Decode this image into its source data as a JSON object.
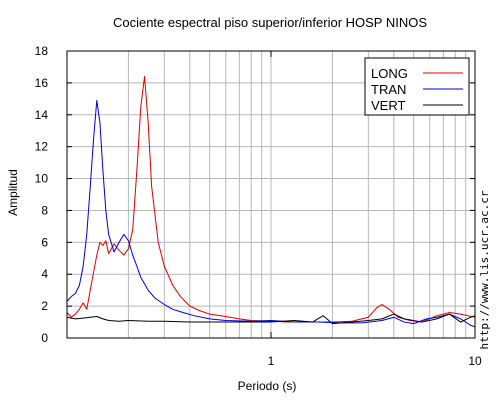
{
  "chart_data": {
    "type": "line",
    "title": "Cociente espectral piso superior/inferior  HOSP NINOS",
    "xlabel": "Periodo (s)",
    "ylabel": "Amplitud",
    "x_scale": "log",
    "xlim": [
      0.1,
      10
    ],
    "ylim": [
      0,
      18
    ],
    "x_ticks": [
      1,
      10
    ],
    "y_ticks": [
      0,
      2,
      4,
      6,
      8,
      10,
      12,
      14,
      16,
      18
    ],
    "grid": true,
    "legend_position": "top-right",
    "side_text": "http://www.lis.ucr.ac.cr",
    "series": [
      {
        "name": "LONG",
        "color": "#dd0000",
        "points": [
          [
            0.1,
            1.6
          ],
          [
            0.105,
            1.3
          ],
          [
            0.11,
            1.5
          ],
          [
            0.115,
            1.8
          ],
          [
            0.12,
            2.2
          ],
          [
            0.125,
            1.8
          ],
          [
            0.13,
            3.0
          ],
          [
            0.14,
            5.2
          ],
          [
            0.145,
            6.0
          ],
          [
            0.15,
            5.8
          ],
          [
            0.155,
            6.1
          ],
          [
            0.16,
            5.3
          ],
          [
            0.17,
            5.9
          ],
          [
            0.18,
            5.5
          ],
          [
            0.19,
            5.2
          ],
          [
            0.2,
            5.6
          ],
          [
            0.21,
            6.8
          ],
          [
            0.22,
            10.5
          ],
          [
            0.23,
            14.5
          ],
          [
            0.24,
            16.4
          ],
          [
            0.25,
            13.5
          ],
          [
            0.26,
            9.5
          ],
          [
            0.28,
            6.0
          ],
          [
            0.3,
            4.5
          ],
          [
            0.33,
            3.3
          ],
          [
            0.36,
            2.6
          ],
          [
            0.4,
            2.0
          ],
          [
            0.45,
            1.7
          ],
          [
            0.5,
            1.5
          ],
          [
            0.6,
            1.35
          ],
          [
            0.7,
            1.2
          ],
          [
            0.8,
            1.1
          ],
          [
            1.0,
            1.05
          ],
          [
            1.2,
            1.0
          ],
          [
            1.5,
            1.0
          ],
          [
            2.0,
            1.0
          ],
          [
            2.5,
            1.05
          ],
          [
            3.0,
            1.3
          ],
          [
            3.3,
            1.9
          ],
          [
            3.5,
            2.1
          ],
          [
            3.8,
            1.8
          ],
          [
            4.2,
            1.3
          ],
          [
            4.8,
            1.1
          ],
          [
            5.5,
            1.0
          ],
          [
            6.5,
            1.4
          ],
          [
            7.5,
            1.6
          ],
          [
            8.5,
            1.5
          ],
          [
            9.2,
            1.4
          ],
          [
            10,
            1.3
          ]
        ]
      },
      {
        "name": "TRAN",
        "color": "#0000cc",
        "points": [
          [
            0.1,
            2.3
          ],
          [
            0.105,
            2.6
          ],
          [
            0.11,
            2.8
          ],
          [
            0.115,
            3.3
          ],
          [
            0.12,
            4.5
          ],
          [
            0.125,
            6.5
          ],
          [
            0.13,
            9.5
          ],
          [
            0.135,
            12.5
          ],
          [
            0.14,
            14.9
          ],
          [
            0.145,
            13.5
          ],
          [
            0.15,
            10.5
          ],
          [
            0.155,
            8.0
          ],
          [
            0.16,
            6.5
          ],
          [
            0.17,
            5.4
          ],
          [
            0.18,
            6.0
          ],
          [
            0.19,
            6.5
          ],
          [
            0.2,
            6.1
          ],
          [
            0.21,
            5.2
          ],
          [
            0.22,
            4.5
          ],
          [
            0.23,
            3.8
          ],
          [
            0.25,
            3.0
          ],
          [
            0.27,
            2.5
          ],
          [
            0.3,
            2.1
          ],
          [
            0.33,
            1.8
          ],
          [
            0.37,
            1.6
          ],
          [
            0.42,
            1.4
          ],
          [
            0.5,
            1.2
          ],
          [
            0.6,
            1.1
          ],
          [
            0.8,
            1.05
          ],
          [
            1.0,
            1.1
          ],
          [
            1.3,
            1.0
          ],
          [
            1.7,
            1.0
          ],
          [
            2.2,
            0.95
          ],
          [
            2.8,
            0.95
          ],
          [
            3.5,
            1.1
          ],
          [
            4.0,
            1.3
          ],
          [
            4.5,
            1.0
          ],
          [
            5.0,
            0.9
          ],
          [
            5.8,
            1.2
          ],
          [
            6.5,
            1.3
          ],
          [
            7.5,
            1.5
          ],
          [
            8.5,
            1.2
          ],
          [
            9.5,
            0.8
          ],
          [
            10,
            0.7
          ]
        ]
      },
      {
        "name": "VERT",
        "color": "#000000",
        "points": [
          [
            0.1,
            1.3
          ],
          [
            0.11,
            1.2
          ],
          [
            0.12,
            1.25
          ],
          [
            0.13,
            1.3
          ],
          [
            0.14,
            1.35
          ],
          [
            0.15,
            1.2
          ],
          [
            0.16,
            1.1
          ],
          [
            0.18,
            1.05
          ],
          [
            0.2,
            1.1
          ],
          [
            0.25,
            1.05
          ],
          [
            0.3,
            1.05
          ],
          [
            0.4,
            1.0
          ],
          [
            0.5,
            1.0
          ],
          [
            0.7,
            1.0
          ],
          [
            1.0,
            1.0
          ],
          [
            1.3,
            1.1
          ],
          [
            1.6,
            1.0
          ],
          [
            1.8,
            1.4
          ],
          [
            2.0,
            0.9
          ],
          [
            2.5,
            1.0
          ],
          [
            3.0,
            1.1
          ],
          [
            3.5,
            1.2
          ],
          [
            4.0,
            1.5
          ],
          [
            4.5,
            1.2
          ],
          [
            5.0,
            1.1
          ],
          [
            5.5,
            1.0
          ],
          [
            6.5,
            1.2
          ],
          [
            7.5,
            1.5
          ],
          [
            8.5,
            1.0
          ],
          [
            9.5,
            1.3
          ],
          [
            10,
            1.4
          ]
        ]
      }
    ]
  }
}
